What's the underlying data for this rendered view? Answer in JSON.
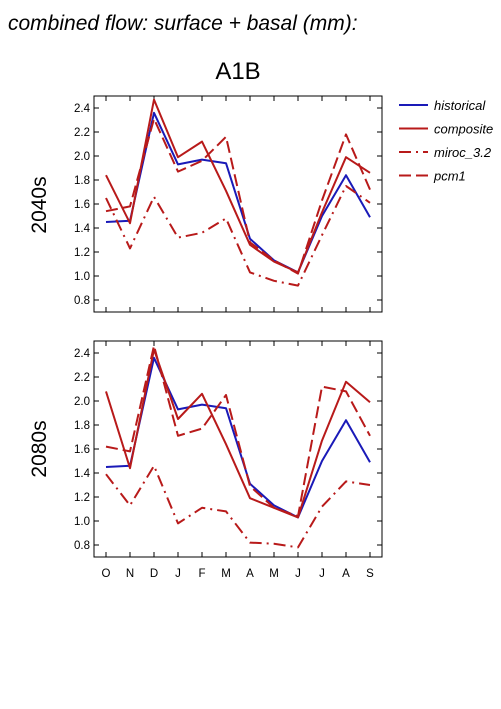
{
  "figure": {
    "title": "combined flow: surface + basal (mm):",
    "scenario": "A1B"
  },
  "legend": {
    "items": [
      {
        "label": "historical",
        "color": "#1a1ab8",
        "dash": "solid"
      },
      {
        "label": "composite",
        "color": "#b81a1a",
        "dash": "solid"
      },
      {
        "label": "miroc_3.2",
        "color": "#b81a1a",
        "dash": "dashdot"
      },
      {
        "label": "pcm1",
        "color": "#b81a1a",
        "dash": "dash"
      }
    ]
  },
  "chart_data": [
    {
      "type": "line",
      "row_label": "2040s",
      "categories": [
        "O",
        "N",
        "D",
        "J",
        "F",
        "M",
        "A",
        "M",
        "J",
        "J",
        "A",
        "S"
      ],
      "ylim": [
        0.7,
        2.5
      ],
      "yticks": [
        "0.8",
        "1.0",
        "1.2",
        "1.4",
        "1.6",
        "1.8",
        "2.0",
        "2.2",
        "2.4"
      ],
      "series": [
        {
          "name": "historical",
          "values": [
            1.45,
            1.46,
            2.36,
            1.93,
            1.97,
            1.94,
            1.31,
            1.13,
            1.03,
            1.5,
            1.84,
            1.49
          ]
        },
        {
          "name": "composite",
          "values": [
            1.84,
            1.44,
            2.47,
            1.99,
            2.12,
            1.71,
            1.26,
            1.12,
            1.03,
            1.53,
            1.99,
            1.86
          ]
        },
        {
          "name": "miroc_3.2",
          "values": [
            1.65,
            1.23,
            1.66,
            1.32,
            1.36,
            1.48,
            1.03,
            0.96,
            0.92,
            1.34,
            1.75,
            1.61
          ]
        },
        {
          "name": "pcm1",
          "values": [
            1.54,
            1.58,
            2.31,
            1.87,
            1.96,
            2.16,
            1.28,
            1.13,
            1.02,
            1.63,
            2.18,
            1.72
          ]
        }
      ]
    },
    {
      "type": "line",
      "row_label": "2080s",
      "categories": [
        "O",
        "N",
        "D",
        "J",
        "F",
        "M",
        "A",
        "M",
        "J",
        "J",
        "A",
        "S"
      ],
      "ylim": [
        0.7,
        2.5
      ],
      "yticks": [
        "0.8",
        "1.0",
        "1.2",
        "1.4",
        "1.6",
        "1.8",
        "2.0",
        "2.2",
        "2.4"
      ],
      "series": [
        {
          "name": "historical",
          "values": [
            1.45,
            1.46,
            2.36,
            1.93,
            1.97,
            1.94,
            1.31,
            1.13,
            1.03,
            1.5,
            1.84,
            1.49
          ]
        },
        {
          "name": "composite",
          "values": [
            2.08,
            1.44,
            2.43,
            1.85,
            2.06,
            1.64,
            1.19,
            1.11,
            1.03,
            1.67,
            2.16,
            1.99
          ]
        },
        {
          "name": "miroc_3.2",
          "values": [
            1.39,
            1.13,
            1.46,
            0.98,
            1.11,
            1.08,
            0.82,
            0.81,
            0.78,
            1.12,
            1.33,
            1.3
          ]
        },
        {
          "name": "pcm1",
          "values": [
            1.62,
            1.58,
            2.46,
            1.71,
            1.77,
            2.05,
            1.29,
            1.11,
            1.04,
            2.12,
            2.08,
            1.71
          ]
        }
      ]
    }
  ]
}
